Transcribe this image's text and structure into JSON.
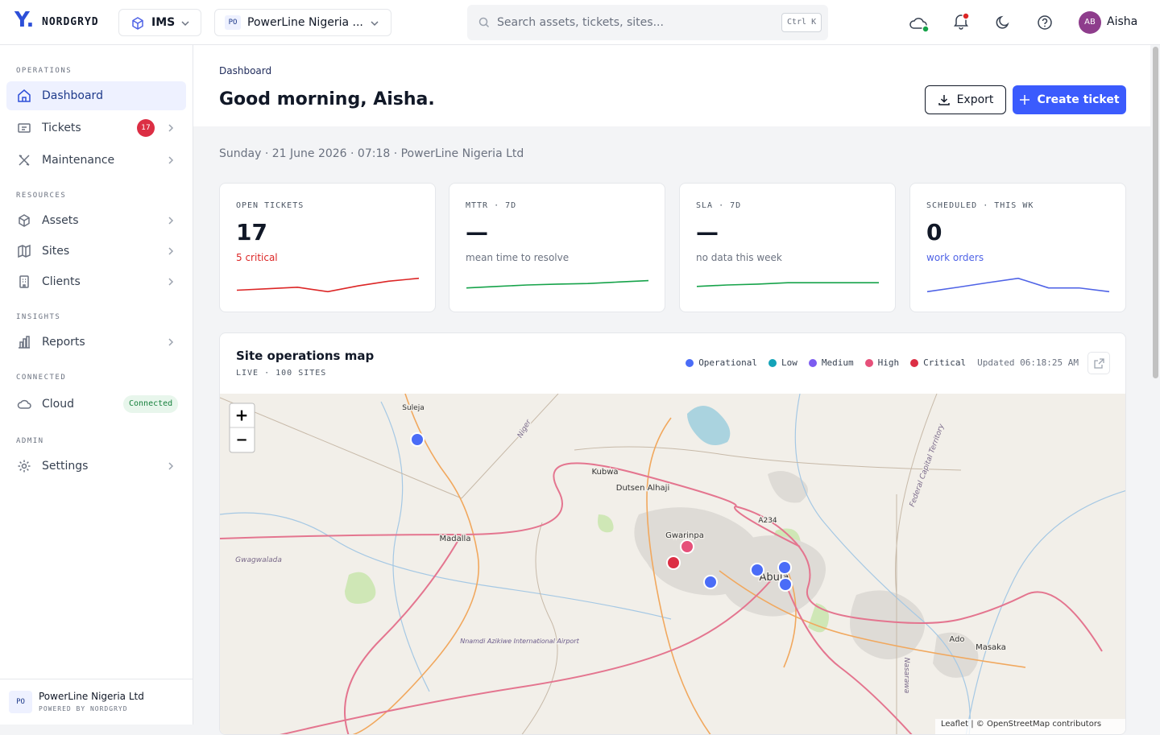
{
  "topbar": {
    "logo": "Y.",
    "brand": "NORDGRYD",
    "module": "IMS",
    "org_badge": "PO",
    "org": "PowerLine Nigeria ...",
    "search_placeholder": "Search assets, tickets, sites...",
    "search_shortcut": "Ctrl K",
    "user_initials": "AB",
    "user_name": "Aisha"
  },
  "sidebar": {
    "sections": [
      {
        "title": "OPERATIONS",
        "items": [
          {
            "label": "Dashboard"
          },
          {
            "label": "Tickets",
            "badge": "17"
          },
          {
            "label": "Maintenance"
          }
        ]
      },
      {
        "title": "RESOURCES",
        "items": [
          {
            "label": "Assets"
          },
          {
            "label": "Sites"
          },
          {
            "label": "Clients"
          }
        ]
      },
      {
        "title": "INSIGHTS",
        "items": [
          {
            "label": "Reports"
          }
        ]
      },
      {
        "title": "CONNECTED",
        "items": [
          {
            "label": "Cloud",
            "badge": "Connected"
          }
        ]
      },
      {
        "title": "ADMIN",
        "items": [
          {
            "label": "Settings"
          }
        ]
      }
    ],
    "footer": {
      "badge": "PO",
      "org": "PowerLine Nigeria Ltd",
      "powered": "POWERED BY NORDGRYD"
    }
  },
  "header": {
    "breadcrumb": "Dashboard",
    "title": "Good morning, Aisha.",
    "export": "Export",
    "create": "Create ticket"
  },
  "date_line": "Sunday · 21 June 2026 · 07:18 · PowerLine Nigeria Ltd",
  "cards": [
    {
      "label": "OPEN TICKETS",
      "value": "17",
      "note": "5 critical",
      "note_color": "#dc2626",
      "spark": {
        "color": "#dc2626",
        "ylim": [
          0,
          10
        ],
        "values": [
          2.5,
          3.2,
          3.9,
          1.8,
          4.6,
          6.8,
          8.2
        ]
      }
    },
    {
      "label": "MTTR · 7D",
      "value": "—",
      "note": "mean time to resolve",
      "note_color": "#6b7280",
      "spark": {
        "color": "#16a34a",
        "ylim": [
          0,
          10
        ],
        "values": [
          3.6,
          4.3,
          5,
          5.4,
          5.7,
          6.4,
          7.1
        ]
      }
    },
    {
      "label": "SLA · 7D",
      "value": "—",
      "note": "no data this week",
      "note_color": "#6b7280",
      "spark": {
        "color": "#16a34a",
        "ylim": [
          0,
          10
        ],
        "values": [
          4.3,
          5,
          5.4,
          6.1,
          6.1,
          6.1,
          6.1
        ]
      }
    },
    {
      "label": "SCHEDULED · THIS WK",
      "value": "0",
      "note": "work orders",
      "note_color": "#4f63e6",
      "spark": {
        "color": "#4f63e6",
        "ylim": [
          0,
          10
        ],
        "values": [
          1.8,
          3.9,
          6.1,
          8.2,
          3.6,
          3.6,
          1.8
        ]
      }
    }
  ],
  "map": {
    "title": "Site operations map",
    "subtitle": "LIVE · 100 SITES",
    "updated": "Updated 06:18:25 AM",
    "legend": [
      {
        "name": "Operational",
        "color": "#4a6cf7"
      },
      {
        "name": "Low",
        "color": "#14a3b8"
      },
      {
        "name": "Medium",
        "color": "#7c5cf0"
      },
      {
        "name": "High",
        "color": "#e6507a"
      },
      {
        "name": "Critical",
        "color": "#dc2e44"
      }
    ],
    "zoom_in": "+",
    "zoom_out": "−",
    "places": [
      "Suleja",
      "Kubwa",
      "Dutsen Alhaji",
      "Madalla",
      "Gwarinpa",
      "Abuja",
      "Gwagwalada",
      "Ado",
      "Masaka",
      "A234",
      "Nnamdi Azikiwe International Airport",
      "Federal Capital Territory",
      "Niger",
      "Nasarawa"
    ],
    "attribution": "Leaflet | © OpenStreetMap contributors"
  }
}
